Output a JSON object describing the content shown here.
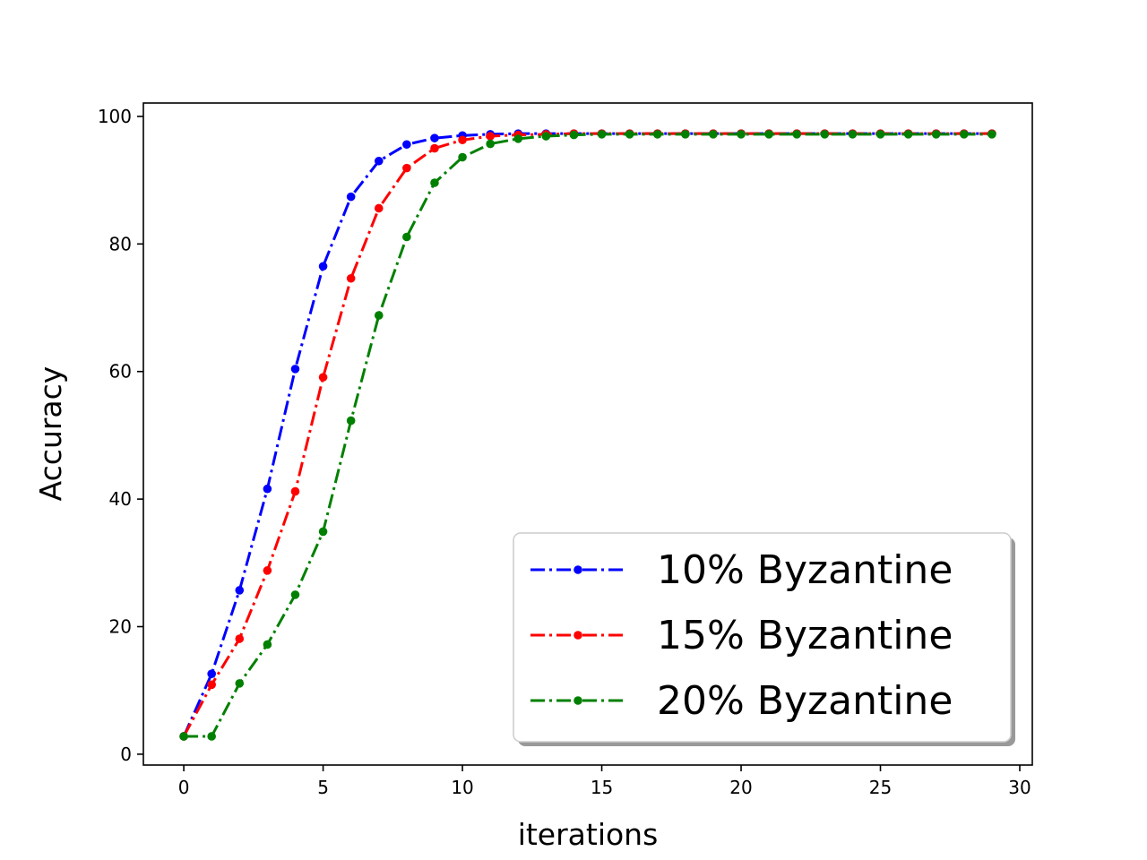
{
  "chart_data": {
    "type": "line",
    "title": "",
    "xlabel": "iterations",
    "ylabel": "Accuracy",
    "xlim": [
      -1.45,
      30.45
    ],
    "ylim": [
      -1.7,
      102.1
    ],
    "xticks": [
      0,
      5,
      10,
      15,
      20,
      25,
      30
    ],
    "yticks": [
      0,
      20,
      40,
      60,
      80,
      100
    ],
    "grid": false,
    "legend_position": "lower-right",
    "x": [
      0,
      1,
      2,
      3,
      4,
      5,
      6,
      7,
      8,
      9,
      10,
      11,
      12,
      13,
      14,
      15,
      16,
      17,
      18,
      19,
      20,
      21,
      22,
      23,
      24,
      25,
      26,
      27,
      28,
      29
    ],
    "series": [
      {
        "name": "10% Byzantine",
        "color": "#0000ff",
        "line_style": "dash-dot",
        "marker": "circle",
        "values": [
          2.8,
          12.6,
          25.7,
          41.6,
          60.4,
          76.5,
          87.4,
          93.0,
          95.6,
          96.6,
          97.0,
          97.2,
          97.3,
          97.3,
          97.3,
          97.3,
          97.3,
          97.3,
          97.3,
          97.3,
          97.3,
          97.3,
          97.3,
          97.3,
          97.3,
          97.3,
          97.3,
          97.3,
          97.3,
          97.3
        ]
      },
      {
        "name": "15% Byzantine",
        "color": "#ff0000",
        "line_style": "dash-dot",
        "marker": "circle",
        "values": [
          2.8,
          10.9,
          18.1,
          28.8,
          41.2,
          59.1,
          74.6,
          85.6,
          91.9,
          95.0,
          96.3,
          96.9,
          97.1,
          97.2,
          97.3,
          97.3,
          97.3,
          97.3,
          97.3,
          97.3,
          97.3,
          97.3,
          97.3,
          97.3,
          97.3,
          97.3,
          97.3,
          97.3,
          97.3,
          97.3
        ]
      },
      {
        "name": "20% Byzantine",
        "color": "#008000",
        "line_style": "dash-dot",
        "marker": "circle",
        "values": [
          2.8,
          2.8,
          11.1,
          17.2,
          25.0,
          34.9,
          52.3,
          68.8,
          81.1,
          89.6,
          93.6,
          95.7,
          96.5,
          96.9,
          97.1,
          97.2,
          97.2,
          97.2,
          97.2,
          97.2,
          97.2,
          97.2,
          97.2,
          97.2,
          97.2,
          97.2,
          97.2,
          97.2,
          97.2,
          97.2
        ]
      }
    ]
  }
}
